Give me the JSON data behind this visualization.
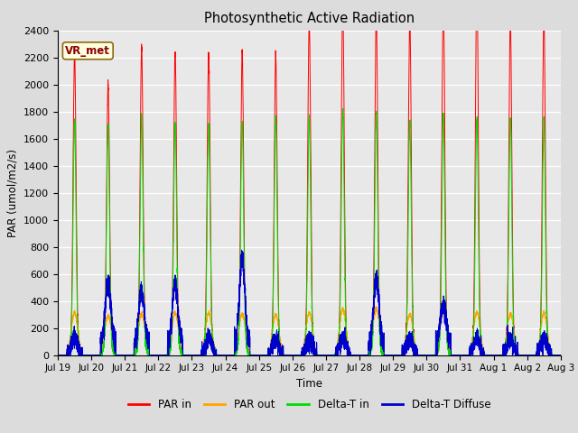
{
  "title": "Photosynthetic Active Radiation",
  "ylabel": "PAR (umol/m2/s)",
  "xlabel": "Time",
  "ylim": [
    0,
    2400
  ],
  "label_tag": "VR_met",
  "background_color": "#dcdcdc",
  "plot_bg_color": "#e8e8e8",
  "x_tick_labels": [
    "Jul 19",
    "Jul 20",
    "Jul 21",
    "Jul 22",
    "Jul 23",
    "Jul 24",
    "Jul 25",
    "Jul 26",
    "Jul 27",
    "Jul 28",
    "Jul 29",
    "Jul 30",
    "Jul 31",
    "Aug 1",
    "Aug 2",
    "Aug 3"
  ],
  "legend": [
    "PAR in",
    "PAR out",
    "Delta-T in",
    "Delta-T Diffuse"
  ],
  "colors": [
    "#ff0000",
    "#ffa500",
    "#00dd00",
    "#0000cc"
  ],
  "num_days": 15,
  "points_per_day": 480,
  "par_in_peaks": [
    2250,
    2000,
    2270,
    2240,
    2240,
    2240,
    2220,
    2460,
    2650,
    2540,
    2510,
    2710,
    2800,
    2500,
    2520
  ],
  "par_out_peaks": [
    310,
    295,
    310,
    310,
    310,
    305,
    295,
    310,
    340,
    345,
    300,
    320,
    315,
    305,
    310
  ],
  "dtin_peaks": [
    1720,
    1700,
    1760,
    1710,
    1710,
    1710,
    1760,
    1760,
    1810,
    1790,
    1710,
    1760,
    1730,
    1750,
    1750
  ],
  "dtdiff_day_spikes": [
    1,
    2,
    3,
    5,
    9,
    11
  ],
  "dtdiff_spike_vals": [
    430,
    370,
    430,
    600,
    460,
    270
  ]
}
